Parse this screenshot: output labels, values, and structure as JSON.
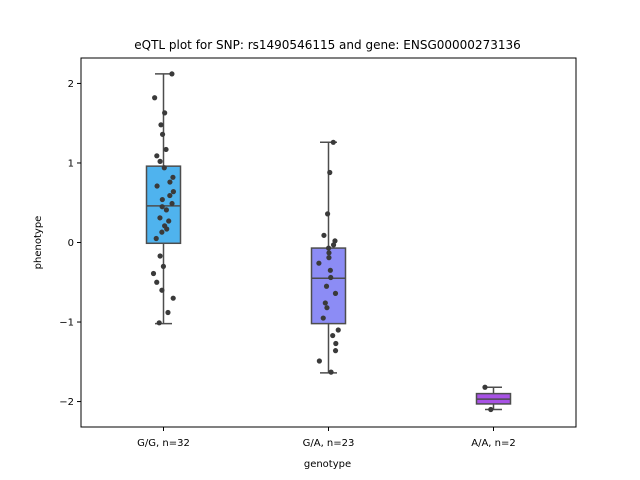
{
  "chart_data": {
    "type": "box",
    "title": "eQTL plot for SNP: rs1490546115 and gene: ENSG00000273136",
    "xlabel": "genotype",
    "ylabel": "phenotype",
    "ylim": [
      -2.32,
      2.32
    ],
    "yticks": [
      -2,
      -1,
      0,
      1,
      2
    ],
    "categories": [
      "G/G, n=32",
      "G/A, n=23",
      "A/A, n=2"
    ],
    "colors": [
      "#4fb3ee",
      "#8c8cf5",
      "#a852e5"
    ],
    "boxes": [
      {
        "category": "G/G, n=32",
        "whisker_low": -1.02,
        "q1": -0.01,
        "median": 0.46,
        "q3": 0.96,
        "whisker_high": 2.12
      },
      {
        "category": "G/A, n=23",
        "whisker_low": -1.64,
        "q1": -1.02,
        "median": -0.45,
        "q3": -0.07,
        "whisker_high": 1.26
      },
      {
        "category": "A/A, n=2",
        "whisker_low": -2.1,
        "q1": -2.03,
        "median": -1.97,
        "q3": -1.9,
        "whisker_high": -1.82
      }
    ],
    "points": [
      {
        "category": "G/G, n=32",
        "values": [
          2.12,
          1.82,
          1.63,
          1.48,
          1.36,
          1.17,
          1.09,
          1.02,
          0.94,
          0.82,
          0.76,
          0.71,
          0.64,
          0.59,
          0.54,
          0.49,
          0.45,
          0.41,
          0.31,
          0.27,
          0.21,
          0.17,
          0.13,
          0.05,
          -0.17,
          -0.3,
          -0.39,
          -0.5,
          -0.6,
          -0.7,
          -0.88,
          -1.01
        ]
      },
      {
        "category": "G/A, n=23",
        "values": [
          1.26,
          0.88,
          0.36,
          0.09,
          0.02,
          -0.03,
          -0.07,
          -0.13,
          -0.19,
          -0.26,
          -0.35,
          -0.44,
          -0.55,
          -0.64,
          -0.76,
          -0.82,
          -0.95,
          -1.1,
          -1.17,
          -1.27,
          -1.36,
          -1.49,
          -1.63
        ]
      },
      {
        "category": "A/A, n=2",
        "values": [
          -1.82,
          -2.1
        ]
      }
    ]
  }
}
